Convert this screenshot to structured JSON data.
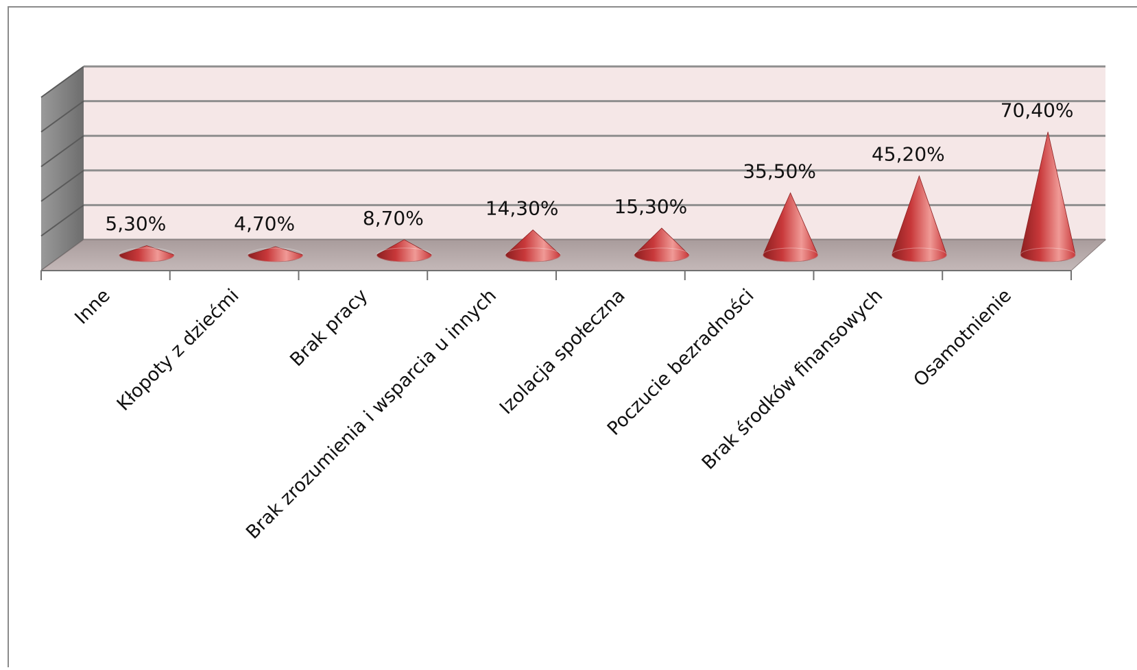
{
  "chart_data": {
    "type": "bar",
    "bar_shape": "cone",
    "style": "3d",
    "categories": [
      "Inne",
      "Kłopoty z dziećmi",
      "Brak pracy",
      "Brak zrozumienia i wsparcia u innych",
      "Izolacja społeczna",
      "Poczucie bezradności",
      "Brak środków finansowych",
      "Osamotnienie"
    ],
    "values": [
      5.3,
      4.7,
      8.7,
      14.3,
      15.3,
      35.5,
      45.2,
      70.4
    ],
    "data_labels": [
      "5,30%",
      "4,70%",
      "8,70%",
      "14,30%",
      "15,30%",
      "35,50%",
      "45,20%",
      "70,40%"
    ],
    "ylim": [
      0,
      100
    ],
    "grid": true,
    "legend": "none",
    "colors": {
      "bar": "#c8383a",
      "bar_light": "#f09a96",
      "bar_dark": "#8c1f20",
      "back_wall": "#f5e7e7",
      "side_wall": "#8f8f8f",
      "floor": "#b5a8a8",
      "gridline": "#8e8e8e",
      "frame": "#8a8a8a"
    }
  }
}
